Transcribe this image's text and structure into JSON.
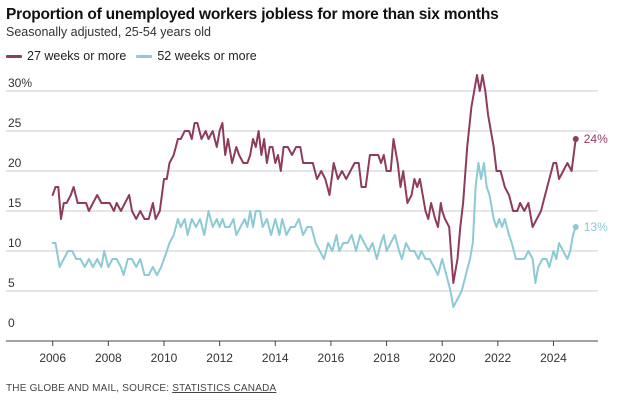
{
  "footer": {
    "prefix": "THE GLOBE AND MAIL, SOURCE: ",
    "link": "STATISTICS CANADA"
  },
  "colors": {
    "series_27": "#8e3b5e",
    "series_52": "#8ccad6",
    "grid": "#cccccc",
    "axis": "#444444"
  },
  "chart_data": {
    "type": "line",
    "title": "Proportion of unemployed workers jobless for more than six months",
    "subtitle": "Seasonally adjusted, 25-54 years old",
    "xlabel": "",
    "ylabel": "",
    "xlim": [
      2005.4,
      2025.6
    ],
    "ylim": [
      0,
      30
    ],
    "yticks": [
      0,
      5,
      10,
      15,
      20,
      25,
      30
    ],
    "ytick_labels": [
      "0",
      "5",
      "10",
      "15",
      "20",
      "25",
      "30%"
    ],
    "xticks": [
      2006,
      2008,
      2010,
      2012,
      2014,
      2016,
      2018,
      2020,
      2022,
      2024
    ],
    "xtick_labels": [
      "2006",
      "2008",
      "2010",
      "2012",
      "2014",
      "2016",
      "2018",
      "2020",
      "2022",
      "2024"
    ],
    "grid": true,
    "legend_position": "top-left",
    "end_labels": [
      "24%",
      "13%"
    ],
    "series": [
      {
        "name": "27 weeks or more",
        "color": "#8e3b5e",
        "points": [
          [
            2006.0,
            17
          ],
          [
            2006.1,
            18
          ],
          [
            2006.2,
            18
          ],
          [
            2006.3,
            14
          ],
          [
            2006.4,
            16
          ],
          [
            2006.5,
            16
          ],
          [
            2006.65,
            17
          ],
          [
            2006.75,
            18
          ],
          [
            2006.9,
            16
          ],
          [
            2007.0,
            16
          ],
          [
            2007.2,
            16
          ],
          [
            2007.3,
            15
          ],
          [
            2007.45,
            16
          ],
          [
            2007.6,
            17
          ],
          [
            2007.75,
            16
          ],
          [
            2007.9,
            16
          ],
          [
            2008.05,
            16
          ],
          [
            2008.2,
            15
          ],
          [
            2008.3,
            16
          ],
          [
            2008.45,
            15
          ],
          [
            2008.6,
            16
          ],
          [
            2008.75,
            17
          ],
          [
            2008.85,
            15
          ],
          [
            2009.0,
            14
          ],
          [
            2009.15,
            15
          ],
          [
            2009.3,
            14
          ],
          [
            2009.45,
            14
          ],
          [
            2009.6,
            16
          ],
          [
            2009.7,
            14
          ],
          [
            2009.85,
            15
          ],
          [
            2010.0,
            19
          ],
          [
            2010.1,
            19
          ],
          [
            2010.2,
            21
          ],
          [
            2010.35,
            22
          ],
          [
            2010.5,
            24
          ],
          [
            2010.6,
            24
          ],
          [
            2010.75,
            25
          ],
          [
            2010.9,
            25
          ],
          [
            2011.0,
            24
          ],
          [
            2011.1,
            26
          ],
          [
            2011.2,
            26
          ],
          [
            2011.35,
            24
          ],
          [
            2011.5,
            25
          ],
          [
            2011.6,
            24
          ],
          [
            2011.75,
            25
          ],
          [
            2011.9,
            23
          ],
          [
            2012.0,
            25
          ],
          [
            2012.1,
            26
          ],
          [
            2012.2,
            22
          ],
          [
            2012.3,
            24
          ],
          [
            2012.45,
            21
          ],
          [
            2012.6,
            23
          ],
          [
            2012.7,
            22
          ],
          [
            2012.85,
            21
          ],
          [
            2013.0,
            21
          ],
          [
            2013.1,
            22
          ],
          [
            2013.2,
            24
          ],
          [
            2013.3,
            23
          ],
          [
            2013.4,
            25
          ],
          [
            2013.5,
            22
          ],
          [
            2013.6,
            24
          ],
          [
            2013.7,
            21
          ],
          [
            2013.8,
            23
          ],
          [
            2013.9,
            23
          ],
          [
            2014.0,
            21
          ],
          [
            2014.1,
            22
          ],
          [
            2014.2,
            20
          ],
          [
            2014.3,
            23
          ],
          [
            2014.45,
            23
          ],
          [
            2014.6,
            22
          ],
          [
            2014.75,
            23
          ],
          [
            2014.9,
            23
          ],
          [
            2015.0,
            21
          ],
          [
            2015.2,
            21
          ],
          [
            2015.35,
            21
          ],
          [
            2015.5,
            19
          ],
          [
            2015.65,
            20
          ],
          [
            2015.8,
            19
          ],
          [
            2015.95,
            17
          ],
          [
            2016.1,
            21
          ],
          [
            2016.25,
            19
          ],
          [
            2016.4,
            20
          ],
          [
            2016.55,
            19
          ],
          [
            2016.7,
            20
          ],
          [
            2016.85,
            21
          ],
          [
            2017.0,
            21
          ],
          [
            2017.1,
            18
          ],
          [
            2017.25,
            18
          ],
          [
            2017.4,
            22
          ],
          [
            2017.55,
            22
          ],
          [
            2017.7,
            22
          ],
          [
            2017.8,
            21
          ],
          [
            2017.9,
            22
          ],
          [
            2018.0,
            20
          ],
          [
            2018.15,
            20
          ],
          [
            2018.25,
            24
          ],
          [
            2018.4,
            21
          ],
          [
            2018.5,
            18
          ],
          [
            2018.6,
            20
          ],
          [
            2018.75,
            16
          ],
          [
            2018.9,
            17
          ],
          [
            2019.0,
            19
          ],
          [
            2019.1,
            18
          ],
          [
            2019.2,
            19
          ],
          [
            2019.3,
            17
          ],
          [
            2019.4,
            15
          ],
          [
            2019.5,
            14
          ],
          [
            2019.6,
            16
          ],
          [
            2019.75,
            14
          ],
          [
            2019.85,
            13
          ],
          [
            2019.95,
            16
          ],
          [
            2020.0,
            15
          ],
          [
            2020.1,
            14
          ],
          [
            2020.25,
            13
          ],
          [
            2020.4,
            6
          ],
          [
            2020.55,
            9
          ],
          [
            2020.65,
            13
          ],
          [
            2020.75,
            16
          ],
          [
            2020.9,
            23
          ],
          [
            2021.05,
            28
          ],
          [
            2021.15,
            30
          ],
          [
            2021.25,
            32
          ],
          [
            2021.35,
            30
          ],
          [
            2021.45,
            32
          ],
          [
            2021.55,
            30
          ],
          [
            2021.65,
            27
          ],
          [
            2021.75,
            25
          ],
          [
            2021.85,
            23
          ],
          [
            2021.95,
            20
          ],
          [
            2022.1,
            20
          ],
          [
            2022.25,
            18
          ],
          [
            2022.4,
            17
          ],
          [
            2022.55,
            15
          ],
          [
            2022.7,
            15
          ],
          [
            2022.8,
            16
          ],
          [
            2022.95,
            15
          ],
          [
            2023.1,
            16
          ],
          [
            2023.25,
            13
          ],
          [
            2023.4,
            14
          ],
          [
            2023.55,
            15
          ],
          [
            2023.7,
            17
          ],
          [
            2023.85,
            19
          ],
          [
            2024.0,
            21
          ],
          [
            2024.1,
            21
          ],
          [
            2024.2,
            19
          ],
          [
            2024.35,
            20
          ],
          [
            2024.5,
            21
          ],
          [
            2024.65,
            20
          ],
          [
            2024.8,
            24
          ]
        ]
      },
      {
        "name": "52 weeks or more",
        "color": "#8ccad6",
        "points": [
          [
            2006.0,
            11
          ],
          [
            2006.1,
            11
          ],
          [
            2006.25,
            8
          ],
          [
            2006.4,
            9
          ],
          [
            2006.55,
            10
          ],
          [
            2006.7,
            10
          ],
          [
            2006.85,
            9
          ],
          [
            2007.0,
            9
          ],
          [
            2007.15,
            8
          ],
          [
            2007.3,
            9
          ],
          [
            2007.45,
            8
          ],
          [
            2007.6,
            9
          ],
          [
            2007.75,
            8
          ],
          [
            2007.85,
            10
          ],
          [
            2008.0,
            8
          ],
          [
            2008.15,
            9
          ],
          [
            2008.3,
            9
          ],
          [
            2008.45,
            8
          ],
          [
            2008.55,
            7
          ],
          [
            2008.7,
            9
          ],
          [
            2008.85,
            9
          ],
          [
            2009.0,
            8
          ],
          [
            2009.15,
            9
          ],
          [
            2009.3,
            7
          ],
          [
            2009.45,
            7
          ],
          [
            2009.6,
            8
          ],
          [
            2009.75,
            7
          ],
          [
            2009.9,
            8
          ],
          [
            2010.0,
            9
          ],
          [
            2010.1,
            10
          ],
          [
            2010.2,
            11
          ],
          [
            2010.35,
            12
          ],
          [
            2010.5,
            14
          ],
          [
            2010.6,
            13
          ],
          [
            2010.75,
            14
          ],
          [
            2010.85,
            12
          ],
          [
            2011.0,
            14
          ],
          [
            2011.15,
            13
          ],
          [
            2011.3,
            14
          ],
          [
            2011.45,
            12
          ],
          [
            2011.6,
            15
          ],
          [
            2011.75,
            13
          ],
          [
            2011.9,
            14
          ],
          [
            2012.0,
            13
          ],
          [
            2012.1,
            14
          ],
          [
            2012.2,
            13
          ],
          [
            2012.35,
            13
          ],
          [
            2012.5,
            14
          ],
          [
            2012.6,
            12
          ],
          [
            2012.75,
            13
          ],
          [
            2012.9,
            14
          ],
          [
            2013.0,
            13
          ],
          [
            2013.1,
            15
          ],
          [
            2013.2,
            13
          ],
          [
            2013.3,
            15
          ],
          [
            2013.45,
            15
          ],
          [
            2013.55,
            13
          ],
          [
            2013.7,
            14
          ],
          [
            2013.85,
            12
          ],
          [
            2014.0,
            14
          ],
          [
            2014.15,
            12
          ],
          [
            2014.25,
            14
          ],
          [
            2014.4,
            12
          ],
          [
            2014.55,
            13
          ],
          [
            2014.7,
            13
          ],
          [
            2014.85,
            14
          ],
          [
            2015.0,
            12
          ],
          [
            2015.15,
            13
          ],
          [
            2015.3,
            13
          ],
          [
            2015.45,
            11
          ],
          [
            2015.6,
            10
          ],
          [
            2015.75,
            9
          ],
          [
            2015.9,
            11
          ],
          [
            2016.05,
            10
          ],
          [
            2016.2,
            12
          ],
          [
            2016.3,
            10
          ],
          [
            2016.45,
            11
          ],
          [
            2016.6,
            11
          ],
          [
            2016.75,
            12
          ],
          [
            2016.9,
            10
          ],
          [
            2017.05,
            12
          ],
          [
            2017.2,
            11
          ],
          [
            2017.35,
            10
          ],
          [
            2017.5,
            11
          ],
          [
            2017.65,
            9
          ],
          [
            2017.8,
            11
          ],
          [
            2017.9,
            12
          ],
          [
            2018.0,
            10
          ],
          [
            2018.15,
            11
          ],
          [
            2018.3,
            12
          ],
          [
            2018.45,
            10
          ],
          [
            2018.55,
            9
          ],
          [
            2018.7,
            11
          ],
          [
            2018.85,
            10
          ],
          [
            2019.0,
            10
          ],
          [
            2019.15,
            9
          ],
          [
            2019.25,
            10
          ],
          [
            2019.4,
            9
          ],
          [
            2019.55,
            9
          ],
          [
            2019.7,
            8
          ],
          [
            2019.85,
            7
          ],
          [
            2020.0,
            9
          ],
          [
            2020.15,
            7
          ],
          [
            2020.3,
            5
          ],
          [
            2020.4,
            3
          ],
          [
            2020.55,
            4
          ],
          [
            2020.7,
            5
          ],
          [
            2020.85,
            7
          ],
          [
            2021.0,
            9
          ],
          [
            2021.1,
            11
          ],
          [
            2021.2,
            18
          ],
          [
            2021.3,
            21
          ],
          [
            2021.4,
            19
          ],
          [
            2021.5,
            21
          ],
          [
            2021.6,
            18
          ],
          [
            2021.7,
            17
          ],
          [
            2021.85,
            14
          ],
          [
            2021.95,
            13
          ],
          [
            2022.05,
            14
          ],
          [
            2022.15,
            13
          ],
          [
            2022.25,
            14
          ],
          [
            2022.4,
            12
          ],
          [
            2022.5,
            11
          ],
          [
            2022.65,
            9
          ],
          [
            2022.8,
            9
          ],
          [
            2022.95,
            9
          ],
          [
            2023.1,
            10
          ],
          [
            2023.25,
            9
          ],
          [
            2023.35,
            6
          ],
          [
            2023.45,
            8
          ],
          [
            2023.6,
            9
          ],
          [
            2023.75,
            9
          ],
          [
            2023.85,
            8
          ],
          [
            2024.0,
            10
          ],
          [
            2024.1,
            9
          ],
          [
            2024.2,
            11
          ],
          [
            2024.35,
            10
          ],
          [
            2024.5,
            9
          ],
          [
            2024.6,
            10
          ],
          [
            2024.7,
            12
          ],
          [
            2024.8,
            13
          ]
        ]
      }
    ]
  }
}
